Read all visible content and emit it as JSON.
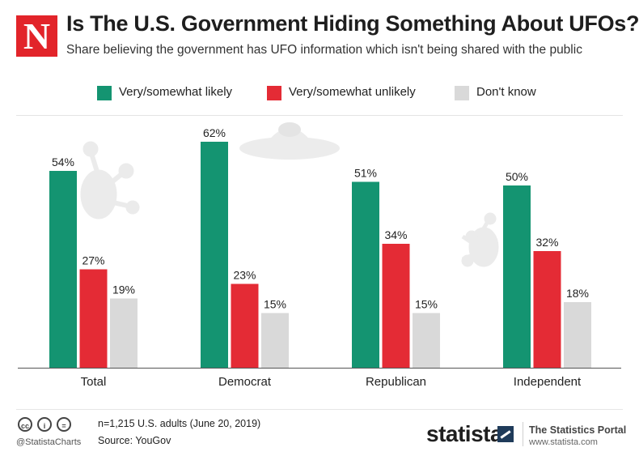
{
  "header": {
    "logo_letter": "N",
    "title": "Is The U.S. Government Hiding Something About UFOs?",
    "subtitle": "Share believing the government has UFO information which isn't being shared with the public"
  },
  "legend": [
    {
      "label": "Very/somewhat likely",
      "color": "#149471"
    },
    {
      "label": "Very/somewhat unlikely",
      "color": "#e42b35"
    },
    {
      "label": "Don't know",
      "color": "#d9d9d9"
    }
  ],
  "chart_data": {
    "type": "bar",
    "title": "Is The U.S. Government Hiding Something About UFOs?",
    "subtitle": "Share believing the government has UFO information which isn't being shared with the public",
    "categories": [
      "Total",
      "Democrat",
      "Republican",
      "Independent"
    ],
    "series": [
      {
        "name": "Very/somewhat likely",
        "color": "#149471",
        "values": [
          54,
          62,
          51,
          50
        ]
      },
      {
        "name": "Very/somewhat unlikely",
        "color": "#e42b35",
        "values": [
          27,
          23,
          34,
          32
        ]
      },
      {
        "name": "Don't know",
        "color": "#d9d9d9",
        "values": [
          19,
          15,
          15,
          18
        ]
      }
    ],
    "value_suffix": "%",
    "ylim": [
      0,
      70
    ],
    "grid": false,
    "legend_position": "top"
  },
  "footer": {
    "handle": "@StatistaCharts",
    "note": "n=1,215 U.S. adults (June 20, 2019)",
    "source": "Source: YouGov",
    "brand": "statista",
    "portal": "The Statistics Portal",
    "portal_url": "www.statista.com",
    "license_icons": [
      "cc-icon",
      "by-icon",
      "nd-icon"
    ]
  }
}
